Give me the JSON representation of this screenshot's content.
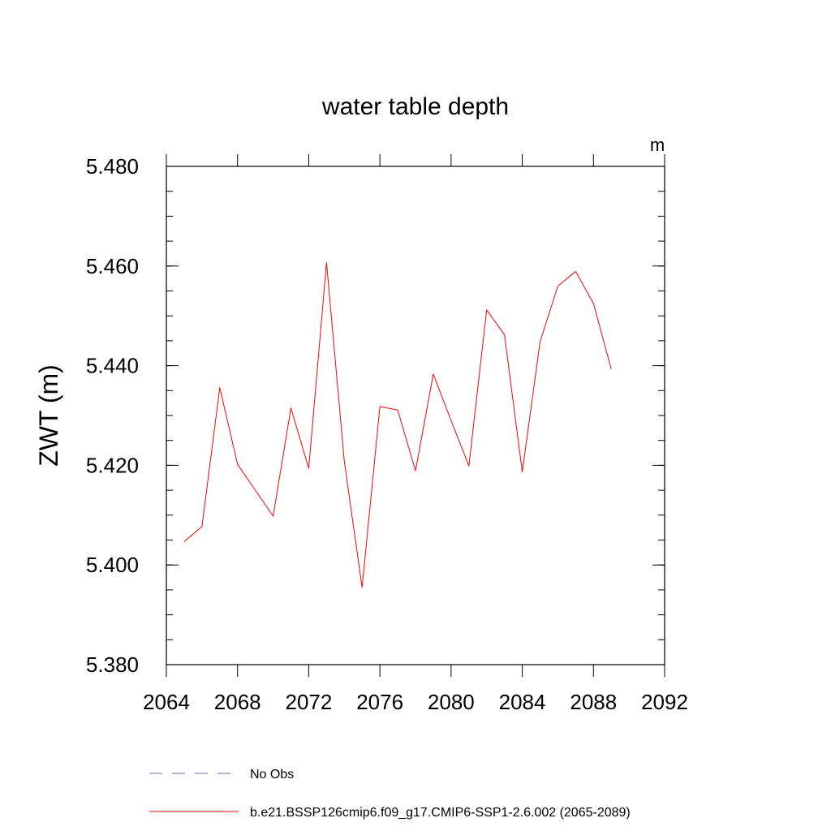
{
  "chart_data": {
    "type": "line",
    "title": "water table depth",
    "units_label": "m",
    "ylabel": "ZWT  (m)",
    "xlabel": "",
    "xlim": [
      2064,
      2092
    ],
    "ylim": [
      5.38,
      5.48
    ],
    "x_ticks": [
      "2064",
      "2068",
      "2072",
      "2076",
      "2080",
      "2084",
      "2088",
      "2092"
    ],
    "y_ticks": [
      "5.380",
      "5.400",
      "5.420",
      "5.440",
      "5.460",
      "5.480"
    ],
    "grid": false,
    "series": [
      {
        "name": "b.e21.BSSP126cmip6.f09_g17.CMIP6-SSP1-2.6.002 (2065-2089)",
        "color": "#ff0000",
        "style": "solid",
        "x": [
          2065,
          2066,
          2067,
          2068,
          2069,
          2070,
          2071,
          2072,
          2073,
          2074,
          2075,
          2076,
          2077,
          2078,
          2079,
          2080,
          2081,
          2082,
          2083,
          2084,
          2085,
          2086,
          2087,
          2088,
          2089
        ],
        "y": [
          5.4047,
          5.4077,
          5.4356,
          5.4202,
          5.415,
          5.4098,
          5.4315,
          5.4194,
          5.4607,
          5.4208,
          5.3955,
          5.4318,
          5.4311,
          5.4189,
          5.4383,
          5.429,
          5.4199,
          5.4512,
          5.4462,
          5.4187,
          5.4448,
          5.456,
          5.4589,
          5.4525,
          5.4393
        ]
      }
    ],
    "legend": {
      "position": "bottom",
      "entries": [
        {
          "label": "No Obs",
          "color": "#6a6aa8",
          "style": "dashed"
        },
        {
          "label": "b.e21.BSSP126cmip6.f09_g17.CMIP6-SSP1-2.6.002 (2065-2089)",
          "color": "#ff0000",
          "style": "solid"
        }
      ]
    }
  }
}
